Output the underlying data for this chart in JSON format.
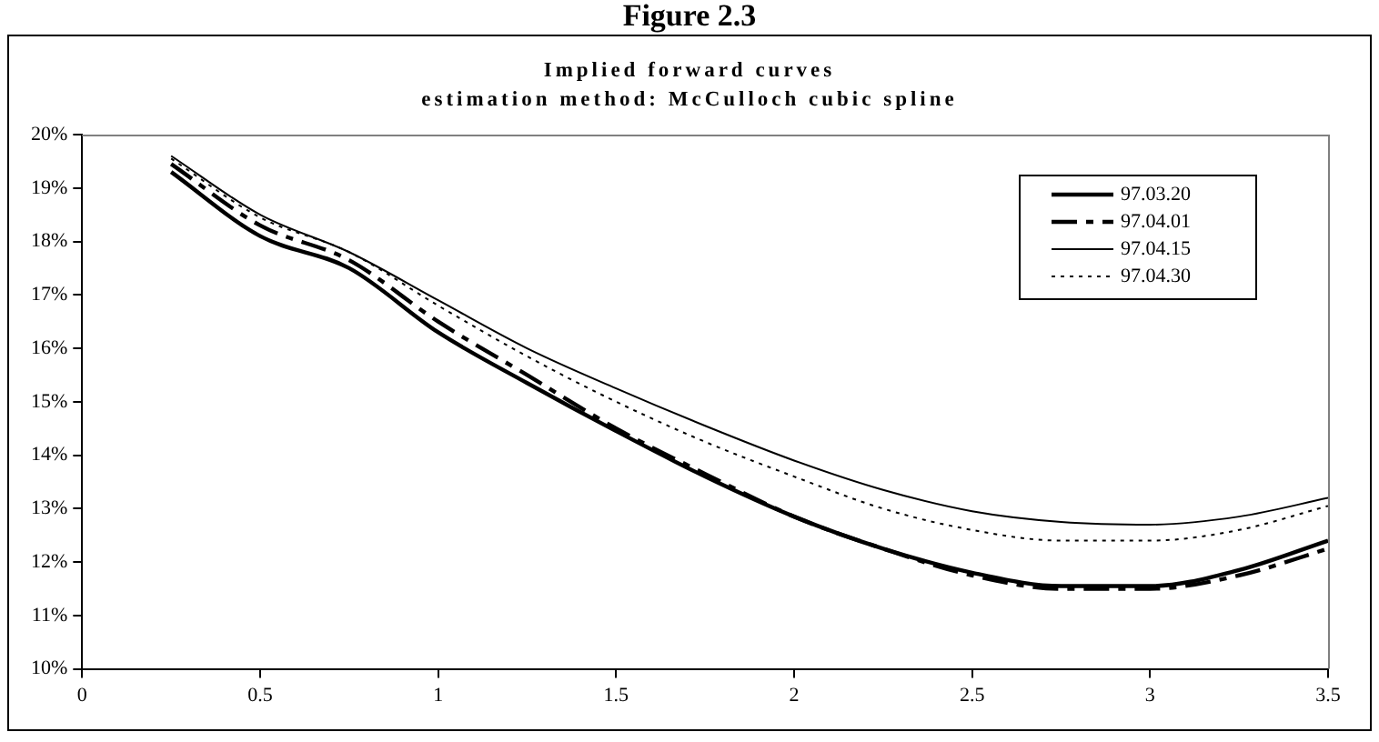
{
  "chart_data": {
    "type": "line",
    "title": "Figure 2.3",
    "subtitle": "Implied forward curves\nestimation method: McCulloch cubic spline",
    "x": [
      0.25,
      0.5,
      0.75,
      1,
      1.25,
      1.5,
      1.75,
      2,
      2.25,
      2.5,
      2.75,
      3,
      3.25,
      3.5
    ],
    "series": [
      {
        "name": "97.03.20",
        "color": "#000000",
        "line_style": "solid",
        "values": [
          19.3,
          18.1,
          17.5,
          16.3,
          15.35,
          14.45,
          13.6,
          12.85,
          12.25,
          11.8,
          11.55,
          11.55,
          11.85,
          12.4
        ]
      },
      {
        "name": "97.04.01",
        "color": "#000000",
        "line_style": "dashed",
        "values": [
          19.45,
          18.3,
          17.65,
          16.5,
          15.5,
          14.5,
          13.65,
          12.85,
          12.25,
          11.75,
          11.5,
          11.5,
          11.75,
          12.25
        ]
      },
      {
        "name": "97.04.15",
        "color": "#000000",
        "line_style": "solid",
        "values": [
          19.6,
          18.5,
          17.8,
          16.9,
          16.0,
          15.25,
          14.55,
          13.9,
          13.35,
          12.95,
          12.75,
          12.7,
          12.85,
          13.2
        ]
      },
      {
        "name": "97.04.30",
        "color": "#000000",
        "line_style": "dotted",
        "values": [
          19.55,
          18.45,
          17.8,
          16.8,
          15.85,
          15.0,
          14.25,
          13.6,
          13.0,
          12.6,
          12.4,
          12.4,
          12.6,
          13.05
        ]
      }
    ],
    "xlim": [
      0,
      3.5
    ],
    "xticks": [
      0,
      0.5,
      1,
      1.5,
      2,
      2.5,
      3,
      3.5
    ],
    "ylim": [
      10,
      20
    ],
    "yticks": [
      {
        "value": 10,
        "label": "10%"
      },
      {
        "value": 11,
        "label": "11%"
      },
      {
        "value": 12,
        "label": "12%"
      },
      {
        "value": 13,
        "label": "13%"
      },
      {
        "value": 14,
        "label": "14%"
      },
      {
        "value": 15,
        "label": "15%"
      },
      {
        "value": 16,
        "label": "16%"
      },
      {
        "value": 17,
        "label": "17%"
      },
      {
        "value": 18,
        "label": "18%"
      },
      {
        "value": 19,
        "label": "19%"
      },
      {
        "value": 20,
        "label": "20%"
      }
    ],
    "grid": false,
    "legend": "top right",
    "marker": "none"
  }
}
